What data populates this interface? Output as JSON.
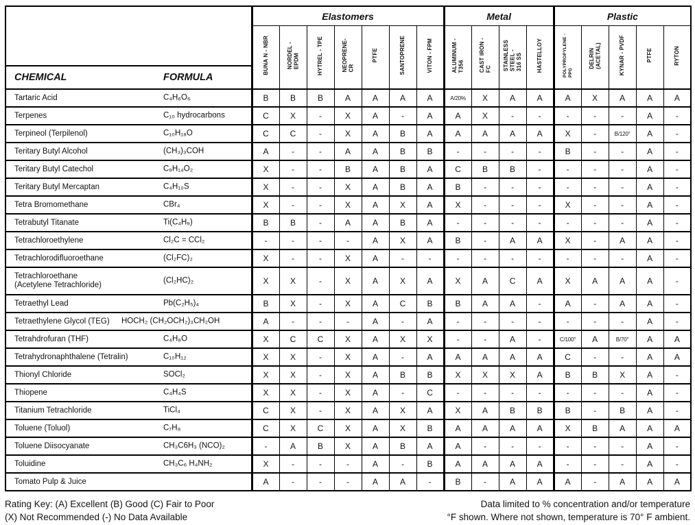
{
  "table": {
    "chemical_header": "CHEMICAL",
    "formula_header": "FORMULA",
    "groups": [
      {
        "label": "Elastomers",
        "span": 7
      },
      {
        "label": "Metal",
        "span": 4
      },
      {
        "label": "Plastic",
        "span": 5
      }
    ],
    "columns": [
      "BUNA N - NBR",
      "NORDEL -\nEPDM",
      "HYTREL - TPE",
      "NEOPRENE-\nCR",
      "PTFE",
      "SANTOPRENE",
      "VITON - FPM",
      "ALUMINUM -\nT356",
      "CAST IRON -\nFC",
      "STAINLESS\nSTEEL -\n316 SS",
      "HASTELLOY",
      "POLYPROPYLENE -\nPPG",
      "DELRIN\n(ACETAL)",
      "KYNAR - PVDF",
      "PTFE",
      "RYTON"
    ],
    "rows": [
      {
        "chemical": "Tartaric Acid",
        "formula": "C₄H₆O₆",
        "ratings": [
          "B",
          "B",
          "B",
          "A",
          "A",
          "A",
          "A",
          "A/20%",
          "X",
          "A",
          "A",
          "A",
          "X",
          "A",
          "A",
          "A"
        ]
      },
      {
        "chemical": "Terpenes",
        "formula": "C₁₀ hydrocarbons",
        "ratings": [
          "C",
          "X",
          "-",
          "X",
          "A",
          "-",
          "A",
          "A",
          "X",
          "-",
          "-",
          "-",
          "-",
          "-",
          "A",
          "-"
        ]
      },
      {
        "chemical": "Terpineol (Terpilenol)",
        "formula": "C₁₀H₁₈O",
        "ratings": [
          "C",
          "C",
          "-",
          "X",
          "A",
          "B",
          "A",
          "A",
          "A",
          "A",
          "A",
          "X",
          "-",
          "B/120°",
          "A",
          "-"
        ]
      },
      {
        "chemical": "Teritary Butyl Alcohol",
        "formula": "(CH₃)₃COH",
        "ratings": [
          "A",
          "-",
          "-",
          "A",
          "A",
          "B",
          "B",
          "-",
          "-",
          "-",
          "-",
          "B",
          "-",
          "-",
          "A",
          "-"
        ]
      },
      {
        "chemical": "Teritary Butyl Catechol",
        "formula": "C₉H₁₄O₂",
        "ratings": [
          "X",
          "-",
          "-",
          "B",
          "A",
          "B",
          "A",
          "C",
          "B",
          "B",
          "-",
          "-",
          "-",
          "-",
          "A",
          "-"
        ]
      },
      {
        "chemical": "Teritary Butyl Mercaptan",
        "formula": "C₄H₁₀S",
        "ratings": [
          "X",
          "-",
          "-",
          "X",
          "A",
          "B",
          "A",
          "B",
          "-",
          "-",
          "-",
          "-",
          "-",
          "-",
          "A",
          "-"
        ]
      },
      {
        "chemical": "Tetra Bromomethane",
        "formula": "CBr₄",
        "ratings": [
          "X",
          "-",
          "-",
          "X",
          "A",
          "X",
          "A",
          "X",
          "-",
          "-",
          "-",
          "X",
          "-",
          "-",
          "A",
          "-"
        ]
      },
      {
        "chemical": "Tetrabutyl Titanate",
        "formula": "Ti(C₄H₉)",
        "ratings": [
          "B",
          "B",
          "-",
          "A",
          "A",
          "B",
          "A",
          "-",
          "-",
          "-",
          "-",
          "-",
          "-",
          "-",
          "A",
          "-"
        ]
      },
      {
        "chemical": "Tetrachloroethylene",
        "formula": "Cl₂C = CCl₂",
        "ratings": [
          "-",
          "-",
          "-",
          "-",
          "A",
          "X",
          "A",
          "B",
          "-",
          "A",
          "A",
          "X",
          "-",
          "A",
          "A",
          "-"
        ]
      },
      {
        "chemical": "Tetrachlorodifluoroethane",
        "formula": "(Cl₂FC)₂",
        "ratings": [
          "X",
          "-",
          "-",
          "X",
          "A",
          "-",
          "-",
          "-",
          "-",
          "-",
          "-",
          "-",
          "-",
          "-",
          "A",
          "-"
        ]
      },
      {
        "chemical": "Tetrachloroethane\n(Acetylene Tetrachloride)",
        "formula": "(Cl₂HC)₂",
        "ratings": [
          "X",
          "X",
          "-",
          "X",
          "A",
          "X",
          "A",
          "X",
          "A",
          "C",
          "A",
          "X",
          "A",
          "A",
          "A",
          "-"
        ]
      },
      {
        "chemical": "Tetraethyl Lead",
        "formula": "Pb(C₂H₅)₄",
        "ratings": [
          "B",
          "X",
          "-",
          "X",
          "A",
          "C",
          "B",
          "B",
          "A",
          "A",
          "-",
          "A",
          "-",
          "A",
          "A",
          "-"
        ]
      },
      {
        "chemical": "Tetraethylene Glycol (TEG)",
        "formula": "HOCH₂ (CH₂OCH₂)₃CH₂OH",
        "ratings": [
          "A",
          "-",
          "-",
          "-",
          "A",
          "-",
          "A",
          "-",
          "-",
          "-",
          "-",
          "-",
          "-",
          "-",
          "A",
          "-"
        ]
      },
      {
        "chemical": "Tetrahdrofuran (THF)",
        "formula": "C₄H₈O",
        "ratings": [
          "X",
          "C",
          "C",
          "X",
          "A",
          "X",
          "X",
          "-",
          "-",
          "A",
          "-",
          "C/100°",
          "A",
          "B/70°",
          "A",
          "A"
        ]
      },
      {
        "chemical": "Tetrahydronaphthalene (Tetralin)",
        "formula": "C₁₀H₁₂",
        "ratings": [
          "X",
          "X",
          "-",
          "X",
          "A",
          "-",
          "A",
          "A",
          "A",
          "A",
          "A",
          "C",
          "-",
          "-",
          "A",
          "A"
        ]
      },
      {
        "chemical": "Thionyl Chloride",
        "formula": "SOCl₂",
        "ratings": [
          "X",
          "X",
          "-",
          "X",
          "A",
          "B",
          "B",
          "X",
          "X",
          "X",
          "A",
          "B",
          "B",
          "X",
          "A",
          "-"
        ]
      },
      {
        "chemical": "Thiopene",
        "formula": "C₄H₄S",
        "ratings": [
          "X",
          "X",
          "-",
          "X",
          "A",
          "-",
          "C",
          "-",
          "-",
          "-",
          "-",
          "-",
          "-",
          "-",
          "A",
          "-"
        ]
      },
      {
        "chemical": "Titanium Tetrachloride",
        "formula": "TiCl₄",
        "ratings": [
          "C",
          "X",
          "-",
          "X",
          "A",
          "X",
          "A",
          "X",
          "A",
          "B",
          "B",
          "B",
          "-",
          "B",
          "A",
          "-"
        ]
      },
      {
        "chemical": "Toluene  (Toluol)",
        "formula": "C₇H₈",
        "ratings": [
          "C",
          "X",
          "C",
          "X",
          "A",
          "X",
          "B",
          "A",
          "A",
          "A",
          "A",
          "X",
          "B",
          "A",
          "A",
          "A"
        ]
      },
      {
        "chemical": "Toluene Diisocyanate",
        "formula": "CH₃C6H₃ (NCO)₂",
        "ratings": [
          "-",
          "A",
          "B",
          "X",
          "A",
          "B",
          "A",
          "A",
          "-",
          "-",
          "-",
          "-",
          "-",
          "-",
          "A",
          "-"
        ]
      },
      {
        "chemical": "Toluidine",
        "formula": "CH₃C₆ H₄NH₂",
        "ratings": [
          "X",
          "-",
          "-",
          "-",
          "A",
          "-",
          "B",
          "A",
          "A",
          "A",
          "A",
          "-",
          "-",
          "-",
          "A",
          "-"
        ]
      },
      {
        "chemical": "Tomato Pulp & Juice",
        "formula": "",
        "ratings": [
          "A",
          "-",
          "-",
          "-",
          "A",
          "A",
          "-",
          "B",
          "-",
          "A",
          "A",
          "A",
          "-",
          "A",
          "A",
          "A"
        ]
      }
    ]
  },
  "footer": {
    "rating_key_line1": "Rating Key: (A) Excellent (B) Good (C) Fair to Poor",
    "rating_key_line2": "(X) Not Recommended (-) No Data Available",
    "note_line1": "Data limited to % concentration and/or temperature",
    "note_line2": "°F shown.  Where not shown, temperature is 70° F ambient."
  }
}
